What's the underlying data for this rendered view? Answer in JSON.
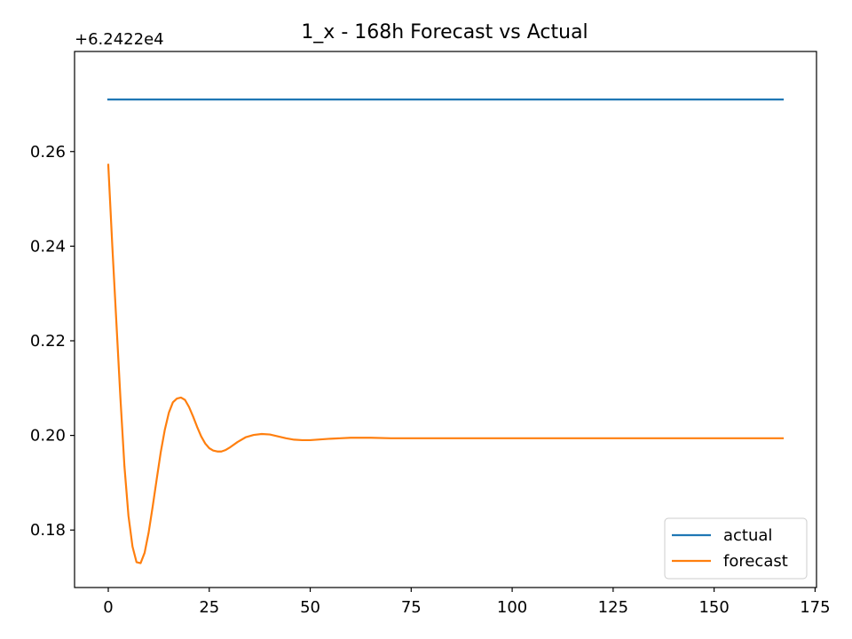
{
  "chart_data": {
    "type": "line",
    "title": "1_x - 168h Forecast vs Actual",
    "offset_text": "+6.2422e4",
    "xlabel": "",
    "ylabel": "",
    "xlim": [
      -8.35,
      175.35
    ],
    "ylim": [
      0.16785,
      0.28115
    ],
    "x_ticks": [
      0,
      25,
      50,
      75,
      100,
      125,
      150,
      175
    ],
    "y_ticks": [
      0.18,
      0.2,
      0.22,
      0.24,
      0.26
    ],
    "y_tick_labels": [
      "0.18",
      "0.20",
      "0.22",
      "0.24",
      "0.26"
    ],
    "grid": false,
    "legend_position": "lower right",
    "series": [
      {
        "name": "actual",
        "color": "#1f77b4",
        "x": [
          0,
          167
        ],
        "y": [
          0.271,
          0.271
        ]
      },
      {
        "name": "forecast",
        "color": "#ff7f0e",
        "x": [
          0,
          1,
          2,
          3,
          4,
          5,
          6,
          7,
          8,
          9,
          10,
          11,
          12,
          13,
          14,
          15,
          16,
          17,
          18,
          19,
          20,
          21,
          22,
          23,
          24,
          25,
          26,
          27,
          28,
          29,
          30,
          32,
          34,
          36,
          38,
          40,
          42,
          44,
          46,
          48,
          50,
          55,
          60,
          65,
          70,
          80,
          100,
          130,
          167
        ],
        "y": [
          0.2572,
          0.24,
          0.224,
          0.208,
          0.1935,
          0.183,
          0.1765,
          0.1732,
          0.173,
          0.1752,
          0.1795,
          0.185,
          0.1908,
          0.1965,
          0.2012,
          0.2048,
          0.207,
          0.2078,
          0.208,
          0.2075,
          0.206,
          0.204,
          0.2018,
          0.1998,
          0.1983,
          0.1973,
          0.1968,
          0.1966,
          0.1966,
          0.1969,
          0.1974,
          0.1986,
          0.1996,
          0.2001,
          0.2003,
          0.2002,
          0.1998,
          0.1994,
          0.1991,
          0.199,
          0.199,
          0.1993,
          0.1995,
          0.1995,
          0.1994,
          0.1994,
          0.1994,
          0.1994,
          0.1994
        ]
      }
    ]
  }
}
